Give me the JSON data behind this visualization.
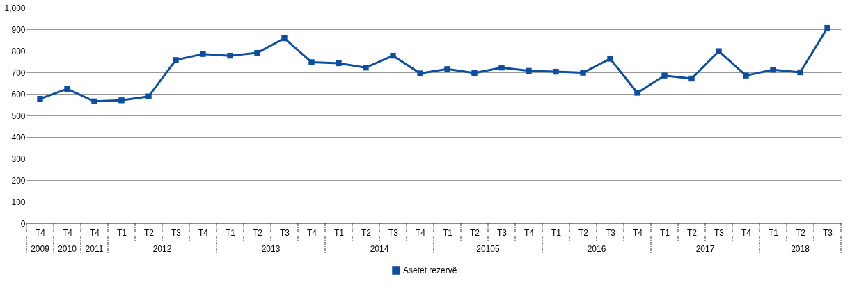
{
  "chart_data": {
    "type": "line",
    "categories": [
      "T4",
      "T4",
      "T4",
      "T1",
      "T2",
      "T3",
      "T4",
      "T1",
      "T2",
      "T3",
      "T4",
      "T1",
      "T2",
      "T3",
      "T4",
      "T1",
      "T2",
      "T3",
      "T4",
      "T1",
      "T2",
      "T3",
      "T4",
      "T1",
      "T2",
      "T3",
      "T4",
      "T1",
      "T2",
      "T3"
    ],
    "annotations": [
      "2009",
      "2010",
      "2011",
      "2012",
      "2013",
      "2014",
      "20105",
      "2016",
      "2017",
      "2018"
    ],
    "series": [
      {
        "name": "Asetet rezervë",
        "color": "#0b4ea2",
        "values": [
          577,
          623,
          565,
          570,
          588,
          757,
          785,
          777,
          790,
          858,
          747,
          742,
          722,
          777,
          695,
          715,
          697,
          722,
          707,
          703,
          698,
          763,
          605,
          685,
          671,
          798,
          685,
          712,
          700,
          906
        ]
      }
    ],
    "ylim": [
      0,
      1000
    ],
    "yticks": [
      0,
      100,
      200,
      300,
      400,
      500,
      600,
      700,
      800,
      900,
      {
        "value": 1000,
        "label": "1,000"
      }
    ],
    "grid": "y",
    "legend": "bottom",
    "marker": "square",
    "line_style": "solid"
  }
}
